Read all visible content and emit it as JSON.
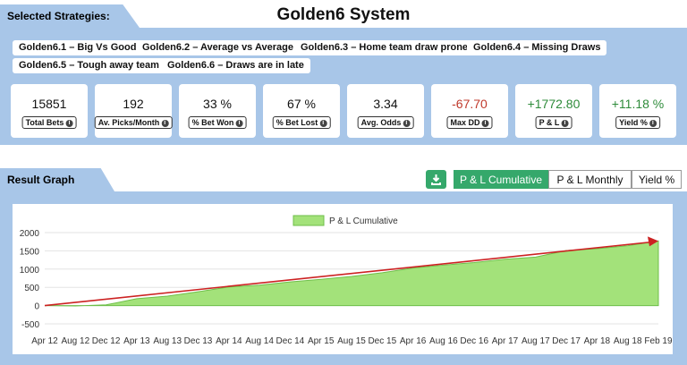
{
  "header": {
    "section_title": "Selected Strategies:",
    "system_title": "Golden6 System"
  },
  "strategies": [
    "Golden6.1 – Big Vs Good",
    "Golden6.2 – Average vs Average",
    "Golden6.3 – Home team draw prone",
    "Golden6.4 – Missing Draws",
    "Golden6.5 – Tough away team",
    "Golden6.6 – Draws are in late"
  ],
  "stats": [
    {
      "value": "15851",
      "label": "Total Bets",
      "color": "#111111"
    },
    {
      "value": "192",
      "label": "Av. Picks/Month",
      "color": "#111111"
    },
    {
      "value": "33 %",
      "label": "% Bet Won",
      "color": "#111111"
    },
    {
      "value": "67 %",
      "label": "% Bet Lost",
      "color": "#111111"
    },
    {
      "value": "3.34",
      "label": "Avg. Odds",
      "color": "#111111"
    },
    {
      "value": "-67.70",
      "label": "Max DD",
      "color": "#c0392b"
    },
    {
      "value": "+1772.80",
      "label": "P & L",
      "color": "#2e8b3a"
    },
    {
      "value": "+11.18 %",
      "label": "Yield %",
      "color": "#2e8b3a"
    }
  ],
  "result": {
    "section_title": "Result Graph",
    "download_icon": "download-icon",
    "tabs": [
      "P & L Cumulative",
      "P & L Monthly",
      "Yield %"
    ],
    "active_tab": 0
  },
  "colors": {
    "accent": "#35a86b",
    "panel": "#a8c6e8",
    "area_fill": "#a3e27a",
    "trend": "#cc2222"
  },
  "chart_data": {
    "type": "area",
    "title": "",
    "xlabel": "",
    "ylabel": "",
    "legend": "P & L Cumulative",
    "legend_position": "top",
    "grid": true,
    "ylim": [
      -500,
      2000
    ],
    "yticks": [
      -500,
      0,
      500,
      1000,
      1500,
      2000
    ],
    "xticks": [
      "Apr 12",
      "Aug 12",
      "Dec 12",
      "Apr 13",
      "Aug 13",
      "Dec 13",
      "Apr 14",
      "Aug 14",
      "Dec 14",
      "Apr 15",
      "Aug 15",
      "Dec 15",
      "Apr 16",
      "Aug 16",
      "Dec 16",
      "Apr 17",
      "Aug 17",
      "Dec 17",
      "Apr 18",
      "Aug 18",
      "Feb 19"
    ],
    "series": [
      {
        "name": "P & L Cumulative",
        "x": [
          "Apr 12",
          "Aug 12",
          "Dec 12",
          "Apr 13",
          "Aug 13",
          "Dec 13",
          "Apr 14",
          "Aug 14",
          "Dec 14",
          "Apr 15",
          "Aug 15",
          "Dec 15",
          "Apr 16",
          "Aug 16",
          "Dec 16",
          "Apr 17",
          "Aug 17",
          "Dec 17",
          "Apr 18",
          "Aug 18",
          "Feb 19"
        ],
        "values": [
          0,
          -10,
          20,
          190,
          260,
          380,
          510,
          560,
          650,
          720,
          800,
          900,
          1030,
          1110,
          1180,
          1270,
          1330,
          1510,
          1560,
          1640,
          1770
        ]
      }
    ],
    "trend_line": {
      "start": 0,
      "end": 1770
    }
  }
}
